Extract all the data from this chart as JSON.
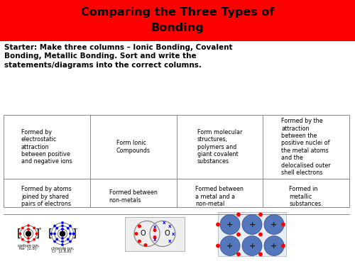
{
  "title_line1": "Comparing the Three Types of",
  "title_line2": "Bonding",
  "title_bg": "#ff0000",
  "title_fg": "#000000",
  "subtitle": "Starter: Make three columns – Ionic Bonding, Covalent\nBonding, Metallic Bonding. Sort and write the\nstatements/diagrams into the correct columns.",
  "table_row1": [
    "Formed by\nelectrostatic\nattraction\nbetween positive\nand negative ions",
    "Form Ionic\nCompounds",
    "Form molecular\nstructures,\npolymers and\ngiant covalent\nsubstances",
    "Formed by the\nattraction\nbetween the\npositive nuclei of\nthe metal atoms\nand the\ndelocalised outer\nshell electrons"
  ],
  "table_row2": [
    "Formed by atoms\njoined by shared\npairs of electrons",
    "Formed between\nnon-metals",
    "Formed between\na metal and a\nnon-metal",
    "Formed in\nmetallic\nsubstances."
  ],
  "table_row3": [
    "",
    "",
    "",
    ""
  ],
  "bg_color": "#ffffff",
  "table_border": "#888888",
  "text_color": "#000000",
  "font_size_title": 11.5,
  "font_size_subtitle": 7.5,
  "font_size_table": 5.8
}
